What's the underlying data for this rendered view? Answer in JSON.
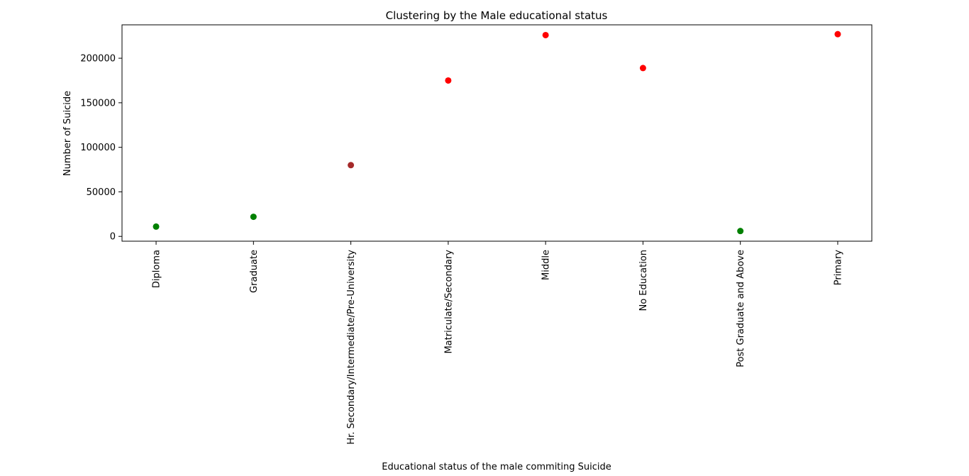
{
  "chart_data": {
    "type": "scatter",
    "title": "Clustering by the Male educational status",
    "xlabel": "Educational status of the male commiting Suicide",
    "ylabel": "Number of Suicide",
    "categories": [
      "Diploma",
      "Graduate",
      "Hr. Secondary/Intermediate/Pre-University",
      "Matriculate/Secondary",
      "Middle",
      "No Education",
      "Post Graduate and Above",
      "Primary"
    ],
    "values": [
      11000,
      22000,
      80000,
      175000,
      226000,
      189000,
      6000,
      227000
    ],
    "point_colors": [
      "#008000",
      "#008000",
      "#a52a2a",
      "#ff0000",
      "#ff0000",
      "#ff0000",
      "#008000",
      "#ff0000"
    ],
    "yticks": [
      0,
      50000,
      100000,
      150000,
      200000
    ],
    "ytick_labels": [
      "0",
      "50000",
      "100000",
      "150000",
      "200000"
    ],
    "ylim": [
      -5400,
      237500
    ],
    "xlim": [
      -0.35,
      7.35
    ],
    "grid": false,
    "legend": "none"
  }
}
